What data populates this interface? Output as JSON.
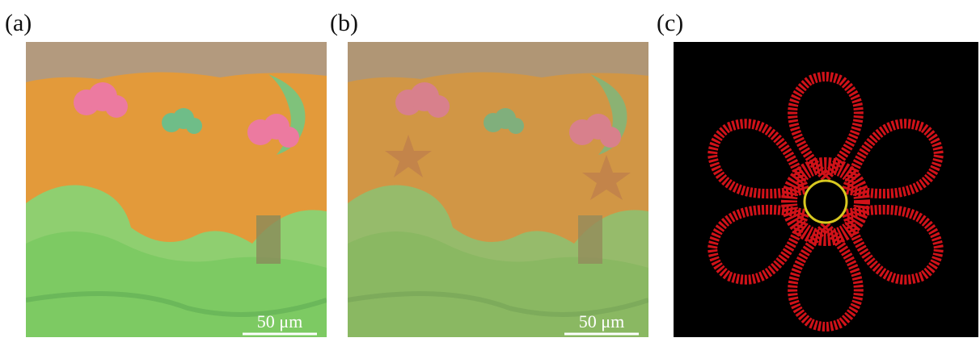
{
  "panels": [
    {
      "label": "(a)",
      "scale_bar": "50 μm"
    },
    {
      "label": "(b)",
      "scale_bar": "50 μm"
    },
    {
      "label": "(c)"
    }
  ]
}
